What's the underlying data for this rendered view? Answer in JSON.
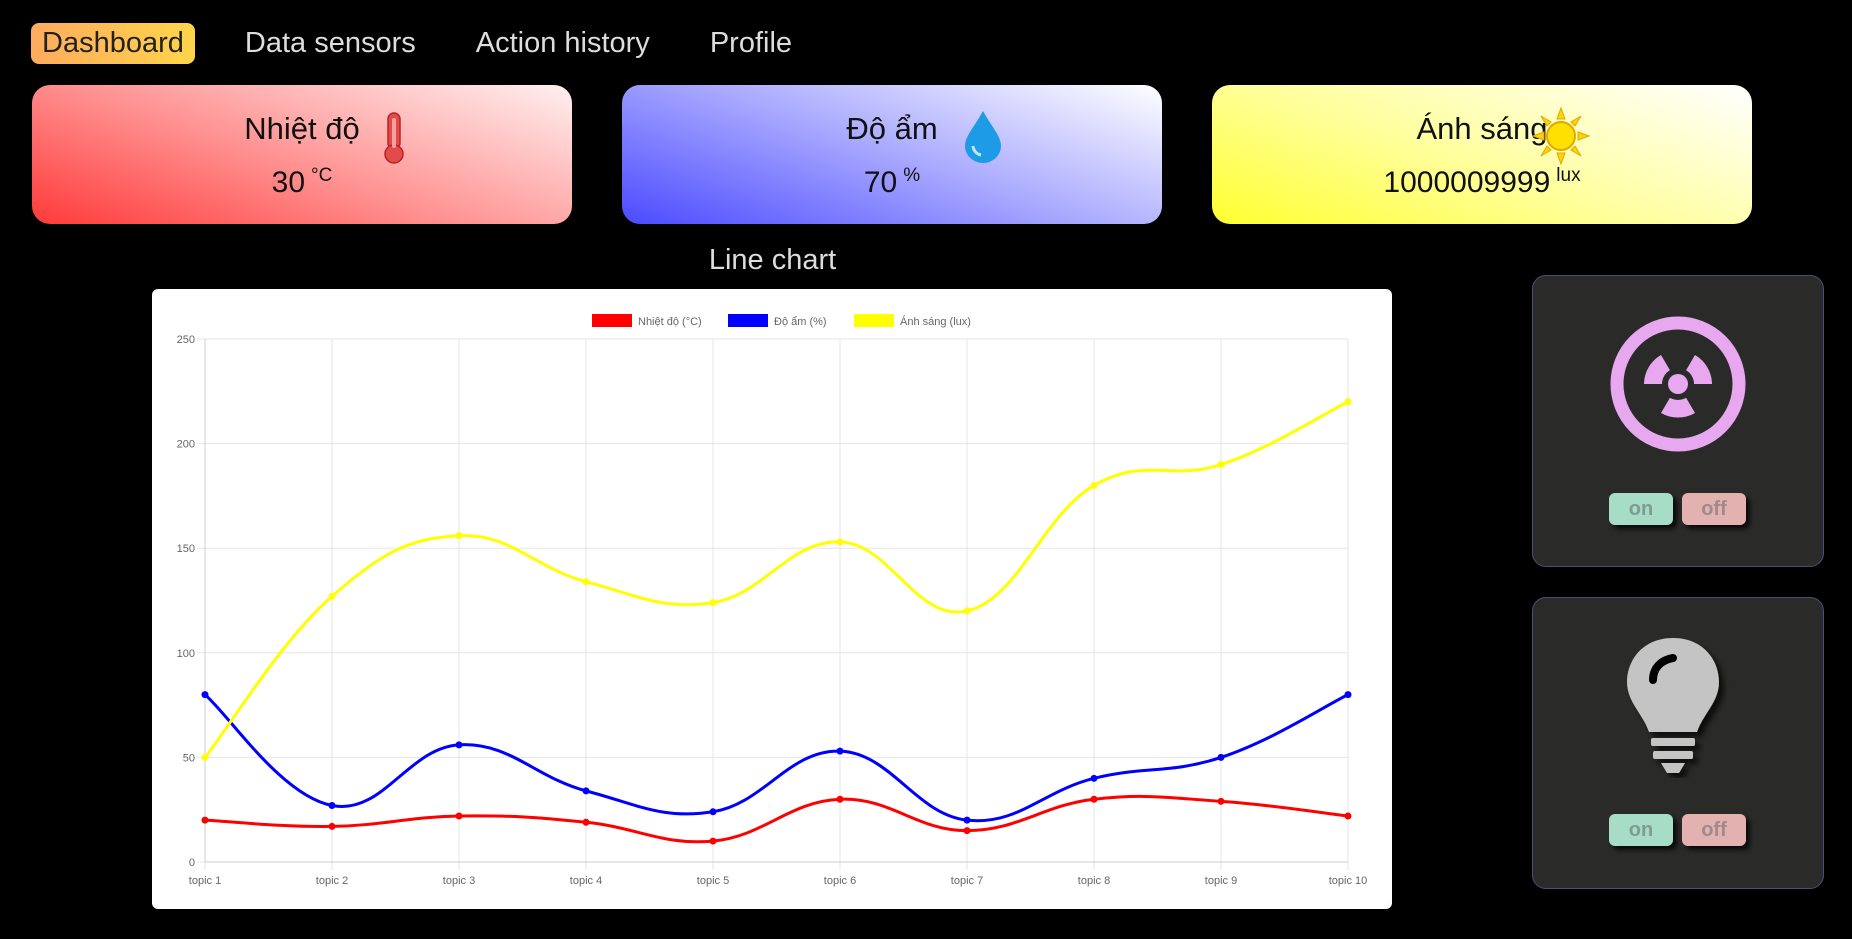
{
  "nav": {
    "items": [
      {
        "label": "Dashboard",
        "active": true
      },
      {
        "label": "Data sensors",
        "active": false
      },
      {
        "label": "Action history",
        "active": false
      },
      {
        "label": "Profile",
        "active": false
      }
    ]
  },
  "cards": {
    "temperature": {
      "title": "Nhiệt độ",
      "value": "30",
      "unit": "°C",
      "icon": "thermometer-icon"
    },
    "humidity": {
      "title": "Độ ẩm",
      "value": "70",
      "unit": "%",
      "icon": "water-drop-icon"
    },
    "light": {
      "title": "Ánh sáng",
      "value": "1000009999",
      "unit": "lux",
      "icon": "sun-icon"
    }
  },
  "chart_title": "Line chart",
  "chart_data": {
    "type": "line",
    "categories": [
      "topic 1",
      "topic 2",
      "topic 3",
      "topic 4",
      "topic 5",
      "topic 6",
      "topic 7",
      "topic 8",
      "topic 9",
      "topic 10"
    ],
    "series": [
      {
        "name": "Nhiệt độ (°C)",
        "color": "#ff0000",
        "values": [
          20,
          17,
          22,
          19,
          10,
          30,
          15,
          30,
          29,
          22
        ]
      },
      {
        "name": "Độ ẩm (%)",
        "color": "#0000ff",
        "values": [
          80,
          27,
          56,
          34,
          24,
          53,
          20,
          40,
          50,
          80
        ]
      },
      {
        "name": "Ánh sáng (lux)",
        "color": "#ffff00",
        "values": [
          50,
          127,
          156,
          134,
          124,
          153,
          120,
          180,
          190,
          220
        ]
      }
    ],
    "ylim": [
      0,
      250
    ],
    "yticks": [
      0,
      50,
      100,
      150,
      200,
      250
    ],
    "grid": true,
    "legend": "top-center"
  },
  "devices": [
    {
      "icon": "fan-icon",
      "icon_color": "#e8a8f0",
      "on_label": "on",
      "off_label": "off"
    },
    {
      "icon": "light-bulb-icon",
      "icon_color": "#c4c4c4",
      "on_label": "on",
      "off_label": "off"
    }
  ]
}
